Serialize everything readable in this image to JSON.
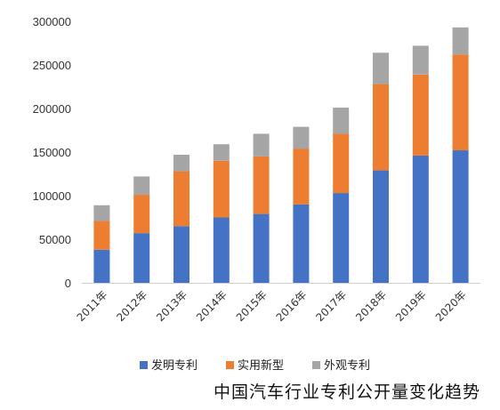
{
  "chart_data": {
    "type": "bar",
    "stacked": true,
    "title": "",
    "xlabel": "",
    "ylabel": "",
    "categories": [
      "2011年",
      "2012年",
      "2013年",
      "2014年",
      "2015年",
      "2016年",
      "2017年",
      "2018年",
      "2019年",
      "2020年"
    ],
    "series": [
      {
        "name": "发明专利",
        "color": "#4472C4",
        "values": [
          38000,
          57000,
          65000,
          75000,
          79000,
          90000,
          103000,
          129000,
          146000,
          152000
        ]
      },
      {
        "name": "实用新型",
        "color": "#ED7D31",
        "values": [
          33000,
          44000,
          63000,
          65000,
          66000,
          64000,
          68000,
          99000,
          93000,
          110000
        ]
      },
      {
        "name": "外观专利",
        "color": "#A5A5A5",
        "values": [
          18000,
          21000,
          19000,
          19000,
          26000,
          25000,
          30000,
          36000,
          33000,
          31000
        ]
      }
    ],
    "yticks": [
      "0",
      "50000",
      "100000",
      "150000",
      "200000",
      "250000",
      "300000"
    ],
    "ylim": [
      0,
      300000
    ],
    "grid": false,
    "legend_position": "bottom"
  },
  "caption": "中国汽车行业专利公开量变化趋势"
}
